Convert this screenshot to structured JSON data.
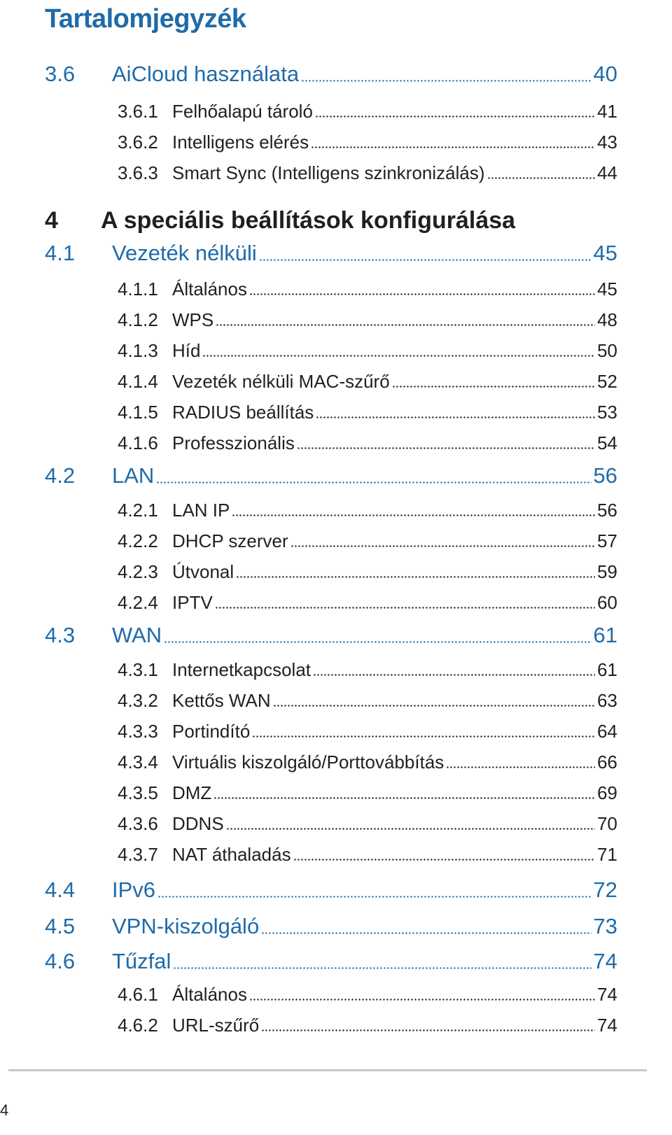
{
  "title": "Tartalomjegyzék",
  "chapter": {
    "num": "4",
    "label": "A speciális beállítások konfigurálása"
  },
  "entries": [
    {
      "level": 1,
      "num": "3.6",
      "label": "AiCloud használata",
      "page": "40"
    },
    {
      "level": 2,
      "num": "3.6.1",
      "label": "Felhőalapú tároló",
      "page": "41"
    },
    {
      "level": 2,
      "num": "3.6.2",
      "label": "Intelligens elérés",
      "page": "43"
    },
    {
      "level": 2,
      "num": "3.6.3",
      "label": "Smart Sync (Intelligens szinkronizálás)",
      "page": "44"
    },
    {
      "level": 1,
      "num": "4.1",
      "label": "Vezeték nélküli",
      "page": "45"
    },
    {
      "level": 2,
      "num": "4.1.1",
      "label": "Általános",
      "page": "45"
    },
    {
      "level": 2,
      "num": "4.1.2",
      "label": "WPS",
      "page": "48"
    },
    {
      "level": 2,
      "num": "4.1.3",
      "label": "Híd",
      "page": "50"
    },
    {
      "level": 2,
      "num": "4.1.4",
      "label": "Vezeték nélküli MAC-szűrő",
      "page": "52"
    },
    {
      "level": 2,
      "num": "4.1.5",
      "label": "RADIUS beállítás",
      "page": "53"
    },
    {
      "level": 2,
      "num": "4.1.6",
      "label": "Professzionális",
      "page": "54"
    },
    {
      "level": 1,
      "num": "4.2",
      "label": "LAN",
      "page": "56"
    },
    {
      "level": 2,
      "num": "4.2.1",
      "label": "LAN IP",
      "page": "56"
    },
    {
      "level": 2,
      "num": "4.2.2",
      "label": "DHCP szerver",
      "page": "57"
    },
    {
      "level": 2,
      "num": "4.2.3",
      "label": "Útvonal",
      "page": "59"
    },
    {
      "level": 2,
      "num": "4.2.4",
      "label": "IPTV",
      "page": "60"
    },
    {
      "level": 1,
      "num": "4.3",
      "label": "WAN",
      "page": "61"
    },
    {
      "level": 2,
      "num": "4.3.1",
      "label": "Internetkapcsolat",
      "page": "61"
    },
    {
      "level": 2,
      "num": "4.3.2",
      "label": "Kettős WAN",
      "page": "63"
    },
    {
      "level": 2,
      "num": "4.3.3",
      "label": "Portindító",
      "page": "64"
    },
    {
      "level": 2,
      "num": "4.3.4",
      "label": "Virtuális kiszolgáló/Porttovábbítás",
      "page": "66"
    },
    {
      "level": 2,
      "num": "4.3.5",
      "label": "DMZ",
      "page": "69"
    },
    {
      "level": 2,
      "num": "4.3.6",
      "label": "DDNS",
      "page": "70"
    },
    {
      "level": 2,
      "num": "4.3.7",
      "label": "NAT áthaladás",
      "page": "71"
    },
    {
      "level": 1,
      "num": "4.4",
      "label": "IPv6",
      "page": "72"
    },
    {
      "level": 1,
      "num": "4.5",
      "label": "VPN-kiszolgáló",
      "page": "73"
    },
    {
      "level": 1,
      "num": "4.6",
      "label": "Tűzfal",
      "page": "74"
    },
    {
      "level": 2,
      "num": "4.6.1",
      "label": "Általános",
      "page": "74"
    },
    {
      "level": 2,
      "num": "4.6.2",
      "label": "URL-szűrő",
      "page": "74"
    }
  ],
  "footer": {
    "page_number": "4"
  }
}
